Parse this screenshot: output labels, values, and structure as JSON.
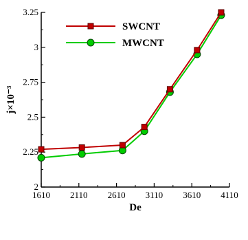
{
  "chart_data": {
    "type": "line",
    "xlabel": "De",
    "ylabel": "j×10⁻³",
    "xlim": [
      1610,
      4110
    ],
    "ylim": [
      2,
      3.25
    ],
    "x_ticks": [
      1610,
      2110,
      2610,
      3110,
      3610,
      4110
    ],
    "y_ticks": [
      2,
      2.25,
      2.5,
      2.75,
      3,
      3.25
    ],
    "y_tick_labels": [
      "2",
      "2.25",
      "2.5",
      "2.75",
      "3",
      "3.25"
    ],
    "legend_position": "top-left",
    "grid": false,
    "series": [
      {
        "name": "SWCNT",
        "color": "#c00000",
        "marker": "square",
        "x": [
          1610,
          2150,
          2690,
          2980,
          3320,
          3680,
          4000
        ],
        "y": [
          2.27,
          2.283,
          2.3,
          2.43,
          2.7,
          2.98,
          3.25
        ]
      },
      {
        "name": "MWCNT",
        "color": "#00cc00",
        "marker": "circle",
        "x": [
          1610,
          2150,
          2690,
          2980,
          3320,
          3680,
          4000
        ],
        "y": [
          2.21,
          2.237,
          2.262,
          2.4,
          2.68,
          2.95,
          3.23
        ]
      }
    ]
  }
}
